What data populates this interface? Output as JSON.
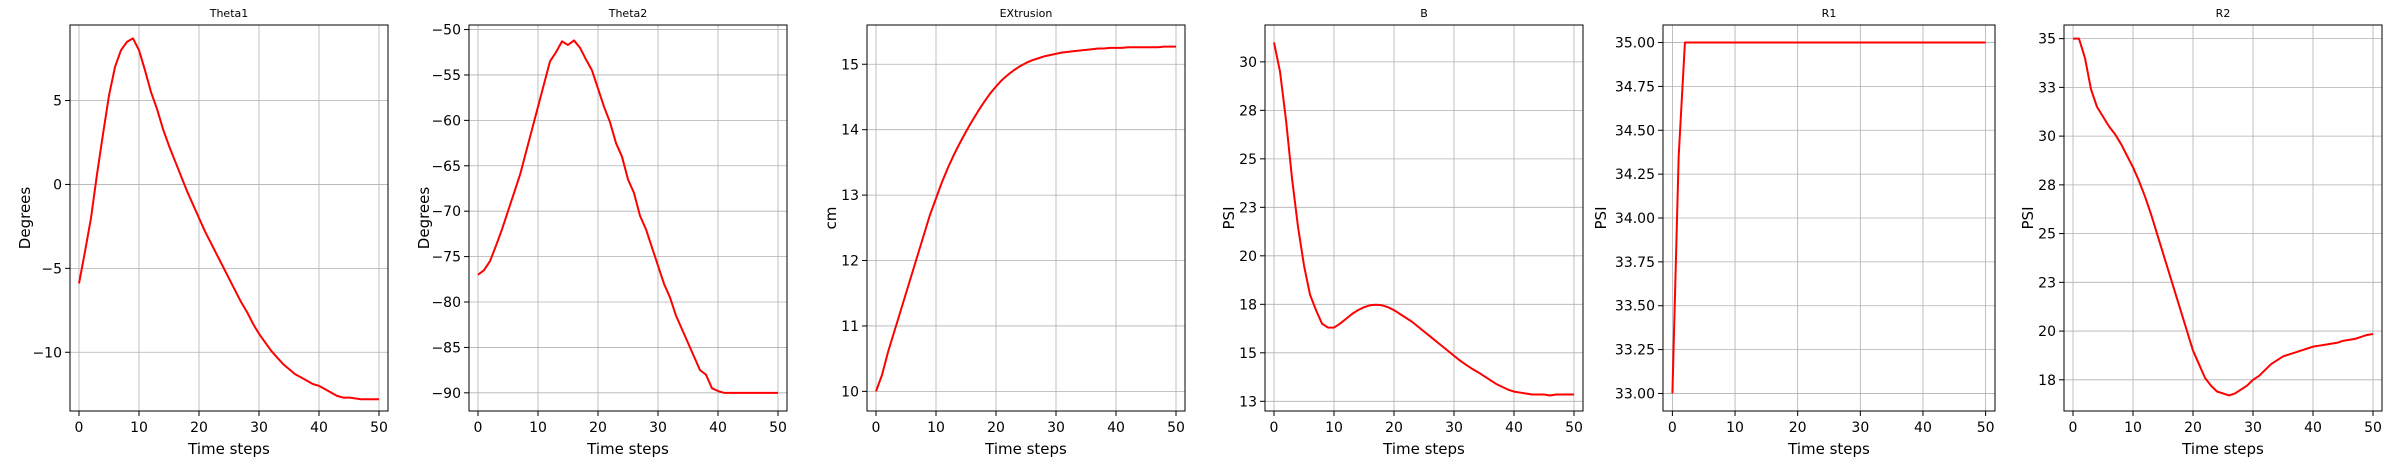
{
  "figure": {
    "line_color": "#ff0000",
    "grid_color": "#b0b0b0",
    "grid": true
  },
  "chart_data": [
    {
      "type": "line",
      "title": "Theta1",
      "xlabel": "Time steps",
      "ylabel": "Degrees",
      "xlim": [
        -1.5,
        51.5
      ],
      "ylim": [
        -13.5,
        9.5
      ],
      "xticks": [
        0,
        10,
        20,
        30,
        40,
        50
      ],
      "yticks": [
        -10,
        -5,
        0,
        5
      ],
      "x": [
        0,
        1,
        2,
        3,
        4,
        5,
        6,
        7,
        8,
        9,
        10,
        11,
        12,
        13,
        14,
        15,
        16,
        17,
        18,
        19,
        20,
        21,
        22,
        23,
        24,
        25,
        26,
        27,
        28,
        29,
        30,
        31,
        32,
        33,
        34,
        35,
        36,
        37,
        38,
        39,
        40,
        41,
        42,
        43,
        44,
        45,
        46,
        47,
        48,
        49,
        50
      ],
      "y": [
        -5.9,
        -4.0,
        -2.0,
        0.6,
        3.0,
        5.3,
        7.0,
        8.0,
        8.5,
        8.7,
        8.0,
        6.8,
        5.5,
        4.5,
        3.3,
        2.3,
        1.4,
        0.5,
        -0.4,
        -1.2,
        -2.0,
        -2.8,
        -3.5,
        -4.2,
        -4.9,
        -5.6,
        -6.3,
        -7.0,
        -7.6,
        -8.3,
        -8.9,
        -9.4,
        -9.9,
        -10.3,
        -10.7,
        -11.0,
        -11.3,
        -11.5,
        -11.7,
        -11.9,
        -12.0,
        -12.2,
        -12.4,
        -12.6,
        -12.7,
        -12.7,
        -12.75,
        -12.8,
        -12.8,
        -12.8,
        -12.8
      ]
    },
    {
      "type": "line",
      "title": "Theta2",
      "xlabel": "Time steps",
      "ylabel": "Degrees",
      "xlim": [
        -1.5,
        51.5
      ],
      "ylim": [
        -92,
        -49.5
      ],
      "xticks": [
        0,
        10,
        20,
        30,
        40,
        50
      ],
      "yticks": [
        -90,
        -85,
        -80,
        -75,
        -70,
        -65,
        -60,
        -55,
        -50
      ],
      "x": [
        0,
        1,
        2,
        3,
        4,
        5,
        6,
        7,
        8,
        9,
        10,
        11,
        12,
        13,
        14,
        15,
        16,
        17,
        18,
        19,
        20,
        21,
        22,
        23,
        24,
        25,
        26,
        27,
        28,
        29,
        30,
        31,
        32,
        33,
        34,
        35,
        36,
        37,
        38,
        39,
        40,
        41,
        42,
        43,
        44,
        45,
        46,
        47,
        48,
        49,
        50
      ],
      "y": [
        -77.0,
        -76.5,
        -75.5,
        -73.8,
        -72.0,
        -70.0,
        -68.0,
        -66.0,
        -63.5,
        -61.0,
        -58.5,
        -56.0,
        -53.5,
        -52.5,
        -51.3,
        -51.7,
        -51.2,
        -52.0,
        -53.3,
        -54.5,
        -56.5,
        -58.5,
        -60.2,
        -62.5,
        -64.0,
        -66.5,
        -68.0,
        -70.5,
        -72.0,
        -74.0,
        -76.0,
        -78.0,
        -79.5,
        -81.5,
        -83.0,
        -84.5,
        -86.0,
        -87.5,
        -88.0,
        -89.5,
        -89.8,
        -90.0,
        -90.0,
        -90.0,
        -90.0,
        -90.0,
        -90.0,
        -90.0,
        -90.0,
        -90.0,
        -90.0
      ]
    },
    {
      "type": "line",
      "title": "EXtrusion",
      "xlabel": "Time steps",
      "ylabel": "cm",
      "xlim": [
        -1.5,
        51.5
      ],
      "ylim": [
        9.7,
        15.6
      ],
      "xticks": [
        0,
        10,
        20,
        30,
        40,
        50
      ],
      "yticks": [
        10,
        11,
        12,
        13,
        14,
        15
      ],
      "x": [
        0,
        1,
        2,
        3,
        4,
        5,
        6,
        7,
        8,
        9,
        10,
        11,
        12,
        13,
        14,
        15,
        16,
        17,
        18,
        19,
        20,
        21,
        22,
        23,
        24,
        25,
        26,
        27,
        28,
        29,
        30,
        31,
        32,
        33,
        34,
        35,
        36,
        37,
        38,
        39,
        40,
        41,
        42,
        43,
        44,
        45,
        46,
        47,
        48,
        49,
        50
      ],
      "y": [
        10.0,
        10.25,
        10.6,
        10.9,
        11.2,
        11.5,
        11.8,
        12.1,
        12.4,
        12.7,
        12.95,
        13.2,
        13.42,
        13.62,
        13.8,
        13.97,
        14.13,
        14.28,
        14.42,
        14.55,
        14.66,
        14.76,
        14.84,
        14.91,
        14.97,
        15.02,
        15.06,
        15.09,
        15.12,
        15.14,
        15.16,
        15.18,
        15.19,
        15.2,
        15.21,
        15.22,
        15.23,
        15.24,
        15.24,
        15.25,
        15.25,
        15.25,
        15.26,
        15.26,
        15.26,
        15.26,
        15.26,
        15.26,
        15.27,
        15.27,
        15.27
      ]
    },
    {
      "type": "line",
      "title": "B",
      "xlabel": "Time steps",
      "ylabel": "PSI",
      "xlim": [
        -1.5,
        51.5
      ],
      "ylim": [
        12.0,
        31.9
      ],
      "xticks": [
        0,
        10,
        20,
        30,
        40,
        50
      ],
      "yticks": [
        12.5,
        15.0,
        17.5,
        20.0,
        22.5,
        25.0,
        27.5,
        30.0
      ],
      "x": [
        0,
        1,
        2,
        3,
        4,
        5,
        6,
        7,
        8,
        9,
        10,
        11,
        12,
        13,
        14,
        15,
        16,
        17,
        18,
        19,
        20,
        21,
        22,
        23,
        24,
        25,
        26,
        27,
        28,
        29,
        30,
        31,
        32,
        33,
        34,
        35,
        36,
        37,
        38,
        39,
        40,
        41,
        42,
        43,
        44,
        45,
        46,
        47,
        48,
        49,
        50
      ],
      "y": [
        31.0,
        29.5,
        27.0,
        24.0,
        21.5,
        19.5,
        18.0,
        17.2,
        16.5,
        16.3,
        16.3,
        16.5,
        16.75,
        17.0,
        17.2,
        17.35,
        17.45,
        17.48,
        17.45,
        17.35,
        17.2,
        17.0,
        16.8,
        16.6,
        16.35,
        16.1,
        15.85,
        15.6,
        15.35,
        15.1,
        14.85,
        14.6,
        14.38,
        14.18,
        14.0,
        13.8,
        13.6,
        13.4,
        13.25,
        13.1,
        13.0,
        12.95,
        12.9,
        12.85,
        12.85,
        12.85,
        12.8,
        12.85,
        12.85,
        12.85,
        12.85
      ]
    },
    {
      "type": "line",
      "title": "R1",
      "xlabel": "Time steps",
      "ylabel": "PSI",
      "xlim": [
        -1.5,
        51.5
      ],
      "ylim": [
        32.9,
        35.1
      ],
      "xticks": [
        0,
        10,
        20,
        30,
        40,
        50
      ],
      "yticks": [
        33.0,
        33.25,
        33.5,
        33.75,
        34.0,
        34.25,
        34.5,
        34.75,
        35.0
      ],
      "yticklabels": [
        "33.00",
        "33.25",
        "33.50",
        "33.75",
        "34.00",
        "34.25",
        "34.50",
        "34.75",
        "35.00"
      ],
      "x": [
        0,
        1,
        2,
        50
      ],
      "y": [
        33.0,
        34.35,
        35.0,
        35.0
      ]
    },
    {
      "type": "line",
      "title": "R2",
      "xlabel": "Time steps",
      "ylabel": "PSI",
      "xlim": [
        -1.5,
        51.5
      ],
      "ylim": [
        15.9,
        35.7
      ],
      "xticks": [
        0,
        10,
        20,
        30,
        40,
        50
      ],
      "yticks": [
        17.5,
        20.0,
        22.5,
        25.0,
        27.5,
        30.0,
        32.5,
        35.0
      ],
      "x": [
        0,
        1,
        2,
        3,
        4,
        5,
        6,
        7,
        8,
        9,
        10,
        11,
        12,
        13,
        14,
        15,
        16,
        17,
        18,
        19,
        20,
        21,
        22,
        23,
        24,
        25,
        26,
        27,
        28,
        29,
        30,
        31,
        32,
        33,
        34,
        35,
        36,
        37,
        38,
        39,
        40,
        41,
        42,
        43,
        44,
        45,
        46,
        47,
        48,
        49,
        50
      ],
      "y": [
        35.0,
        35.0,
        34.0,
        32.4,
        31.5,
        31.0,
        30.5,
        30.1,
        29.6,
        29.0,
        28.4,
        27.7,
        26.9,
        26.0,
        25.0,
        24.0,
        23.0,
        22.0,
        21.0,
        20.0,
        19.0,
        18.3,
        17.6,
        17.2,
        16.9,
        16.8,
        16.7,
        16.8,
        17.0,
        17.2,
        17.5,
        17.7,
        18.0,
        18.3,
        18.5,
        18.7,
        18.8,
        18.9,
        19.0,
        19.1,
        19.2,
        19.25,
        19.3,
        19.35,
        19.4,
        19.5,
        19.55,
        19.6,
        19.7,
        19.8,
        19.85
      ]
    }
  ]
}
